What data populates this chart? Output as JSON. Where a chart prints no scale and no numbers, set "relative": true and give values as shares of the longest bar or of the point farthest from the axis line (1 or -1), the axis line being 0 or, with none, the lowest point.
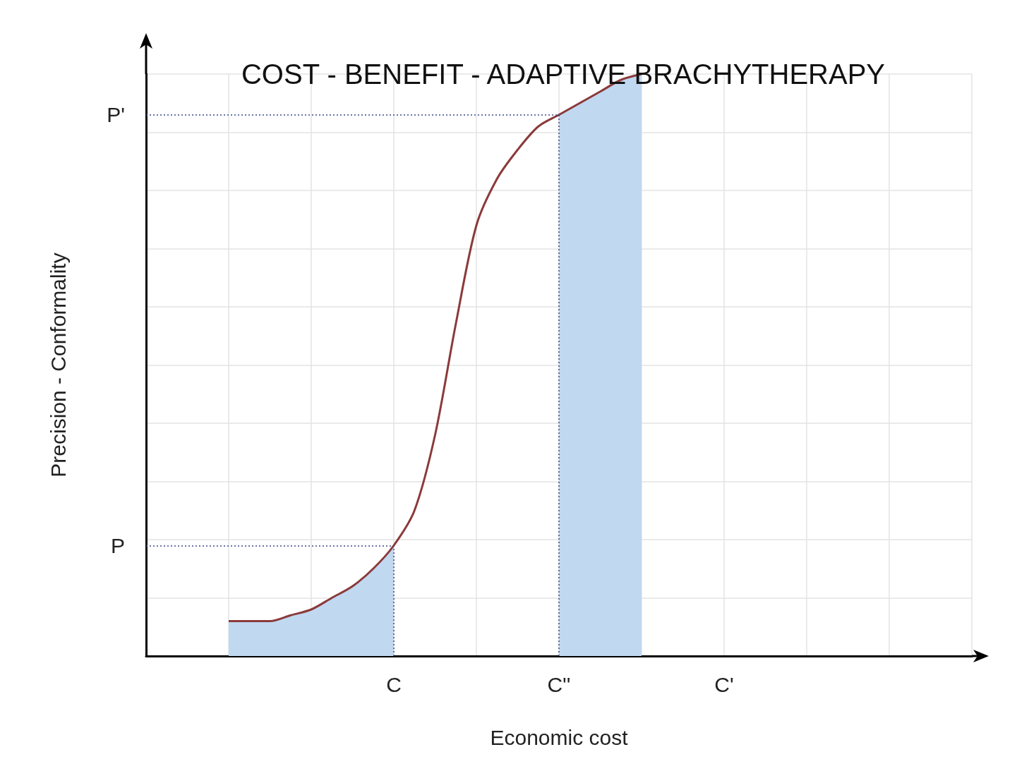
{
  "chart_data": {
    "type": "line",
    "title": "COST - BENEFIT - ADAPTIVE BRACHYTHERAPY",
    "xlabel": "Economic cost",
    "ylabel": "Precision - Conformality",
    "relative": true,
    "categories": [
      null,
      null,
      null,
      null,
      null,
      null,
      null,
      null,
      null,
      null,
      null,
      null,
      "C",
      null,
      null,
      null,
      null,
      null,
      null,
      null,
      "C''",
      null,
      null,
      null,
      null,
      null,
      null,
      null,
      "C'",
      null,
      null,
      null,
      null,
      null,
      null,
      null,
      null,
      null,
      null,
      null,
      null
    ],
    "grid": true,
    "marker": "none",
    "series": [
      {
        "type": "area",
        "color": "#c0d8f0",
        "values": [
          null,
          null,
          null,
          null,
          0.06,
          0.06,
          0.06,
          0.07,
          0.08,
          0.1,
          0.12,
          0.15,
          0.19,
          null,
          null,
          null,
          null,
          null,
          null,
          null,
          null,
          null,
          null,
          null,
          null,
          null,
          null,
          null,
          null,
          null,
          null,
          null,
          null,
          null,
          null,
          null,
          null,
          null,
          null,
          null,
          null
        ]
      },
      {
        "type": "area",
        "color": "#c0d8f0",
        "values": [
          null,
          null,
          null,
          null,
          null,
          null,
          null,
          null,
          null,
          null,
          null,
          null,
          null,
          null,
          null,
          null,
          null,
          null,
          null,
          null,
          0.93,
          0.95,
          0.97,
          0.99,
          1,
          null,
          null,
          null,
          null,
          null,
          null,
          null,
          null,
          null,
          null,
          null,
          null,
          null,
          null,
          null,
          null
        ]
      },
      {
        "color": "#8b3a3a",
        "values": [
          null,
          null,
          null,
          null,
          0.06,
          0.06,
          0.06,
          0.07,
          0.08,
          0.1,
          0.12,
          0.15,
          0.19,
          0.25,
          0.38,
          0.57,
          0.74,
          0.82,
          0.87,
          0.91,
          0.93,
          0.95,
          0.97,
          0.99,
          1,
          null,
          null,
          null,
          null,
          null,
          null,
          null,
          null,
          null,
          null,
          null,
          null,
          null,
          null,
          null,
          null
        ]
      }
    ],
    "ref_lines": [
      {
        "axis": "y",
        "value": 0.19,
        "label": "P",
        "color": "#3a4a8a",
        "line_style": "dotted"
      },
      {
        "axis": "y",
        "value": 0.93,
        "label": "P'",
        "color": "#3a4a8a",
        "line_style": "dotted"
      },
      {
        "axis": "x",
        "value": "C",
        "color": "#3a4a8a",
        "line_style": "dotted"
      },
      {
        "axis": "x",
        "value": "C''",
        "color": "#3a4a8a",
        "line_style": "dotted"
      }
    ]
  }
}
